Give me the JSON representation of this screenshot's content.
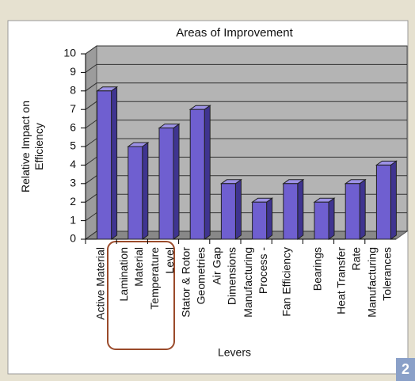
{
  "chart_data": {
    "type": "bar3d",
    "title": "Areas of Improvement",
    "ylabel": [
      "Relative Impact on",
      "Efficiency"
    ],
    "xlabel": "Levers",
    "categories": [
      [
        "Active Material"
      ],
      [
        "Lamination",
        "Material"
      ],
      [
        "Temperature",
        "Level"
      ],
      [
        "Stator & Rotor",
        "Geometries"
      ],
      [
        "Air Gap",
        "Dimensions"
      ],
      [
        "Manufacturing",
        "Process -"
      ],
      [
        "Fan Efficiency"
      ],
      [
        "Bearings"
      ],
      [
        "Heat Transfer",
        "Rate"
      ],
      [
        "Manufacturing",
        "Tolerances"
      ]
    ],
    "values": [
      8,
      5,
      6,
      7,
      3,
      2,
      3,
      2,
      3,
      4
    ],
    "color": "#6f5fd0",
    "ylim": [
      0,
      10
    ],
    "yticks": [
      0,
      1,
      2,
      3,
      4,
      5,
      6,
      7,
      8,
      9,
      10
    ],
    "grid": true
  },
  "page_number": "2"
}
